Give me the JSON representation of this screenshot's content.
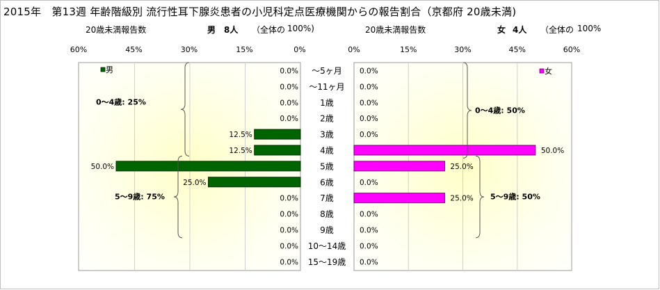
{
  "title": "2015年　第13週 年齢階級別 流行性耳下腺炎患者の小児科定点医療機関からの報告割合（京都府 20歳未満)",
  "left_header": {
    "report_label": "20歳未満報告数",
    "sex": "男",
    "count": "8人",
    "total_label": "（全体の",
    "total_pct": "100%)"
  },
  "right_header": {
    "report_label": "20歳未満報告数",
    "sex": "女",
    "count": "4人",
    "total_label": "（全体の",
    "total_pct": "100%"
  },
  "chart_data": [
    {
      "type": "bar",
      "orientation": "horizontal",
      "direction": "reversed",
      "series": [
        {
          "name": "男",
          "color": "#006400",
          "values": [
            0,
            0,
            0,
            0,
            12.5,
            12.5,
            50.0,
            25.0,
            0,
            0,
            0,
            0,
            0
          ]
        }
      ],
      "categories": [
        "～5ヶ月",
        "～11ヶ月",
        "1歳",
        "2歳",
        "3歳",
        "4歳",
        "5歳",
        "6歳",
        "7歳",
        "8歳",
        "9歳",
        "10～14歳",
        "15～19歳"
      ],
      "xlim": [
        0,
        60
      ],
      "xticks": [
        "60%",
        "45%",
        "30%",
        "15%",
        "0%"
      ],
      "legend": "top-left",
      "groups": [
        {
          "label": "0～4歳: 25%",
          "from": 0,
          "to": 5
        },
        {
          "label": "5～9歳: 75%",
          "from": 6,
          "to": 10
        }
      ]
    },
    {
      "type": "bar",
      "orientation": "horizontal",
      "series": [
        {
          "name": "女",
          "color": "#ff00ff",
          "values": [
            0,
            0,
            0,
            0,
            0,
            50.0,
            25.0,
            0,
            25.0,
            0,
            0,
            0,
            0
          ]
        }
      ],
      "categories": [
        "～5ヶ月",
        "～11ヶ月",
        "1歳",
        "2歳",
        "3歳",
        "4歳",
        "5歳",
        "6歳",
        "7歳",
        "8歳",
        "9歳",
        "10～14歳",
        "15～19歳"
      ],
      "xlim": [
        0,
        60
      ],
      "xticks": [
        "0%",
        "15%",
        "30%",
        "45%",
        "60%"
      ],
      "legend": "top-right",
      "groups": [
        {
          "label": "0～4歳: 50%",
          "from": 0,
          "to": 5
        },
        {
          "label": "5～9歳: 50%",
          "from": 6,
          "to": 10
        }
      ]
    }
  ]
}
